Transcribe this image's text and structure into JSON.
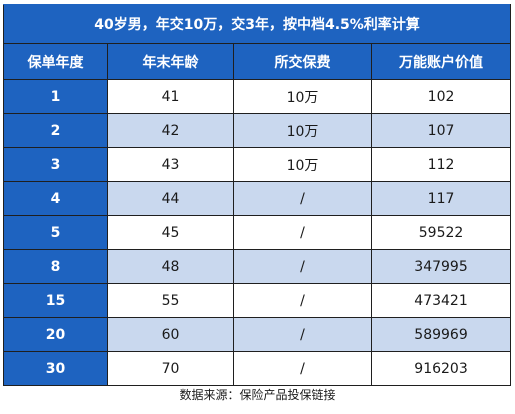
{
  "title": "40岁男，年交10万，交3年，按中档4.5%利率计算",
  "columns": [
    "保单年度",
    "年末年龄",
    "所交保费",
    "万能账户价值"
  ],
  "rows": [
    {
      "year": "1",
      "age": "41",
      "premium": "10万",
      "value": "102"
    },
    {
      "year": "2",
      "age": "42",
      "premium": "10万",
      "value": "107"
    },
    {
      "year": "3",
      "age": "43",
      "premium": "10万",
      "value": "112"
    },
    {
      "year": "4",
      "age": "44",
      "premium": "/",
      "value": "117"
    },
    {
      "year": "5",
      "age": "45",
      "premium": "/",
      "value": "59522"
    },
    {
      "year": "8",
      "age": "48",
      "premium": "/",
      "value": "347995"
    },
    {
      "year": "15",
      "age": "55",
      "premium": "/",
      "value": "473421"
    },
    {
      "year": "20",
      "age": "60",
      "premium": "/",
      "value": "589969"
    },
    {
      "year": "30",
      "age": "70",
      "premium": "/",
      "value": "916203"
    }
  ],
  "source": "数据来源：保险产品投保链接",
  "colors": {
    "header_blue": "#1e63c0",
    "alt_row": "#c9d8ee",
    "plain_row": "#ffffff"
  }
}
